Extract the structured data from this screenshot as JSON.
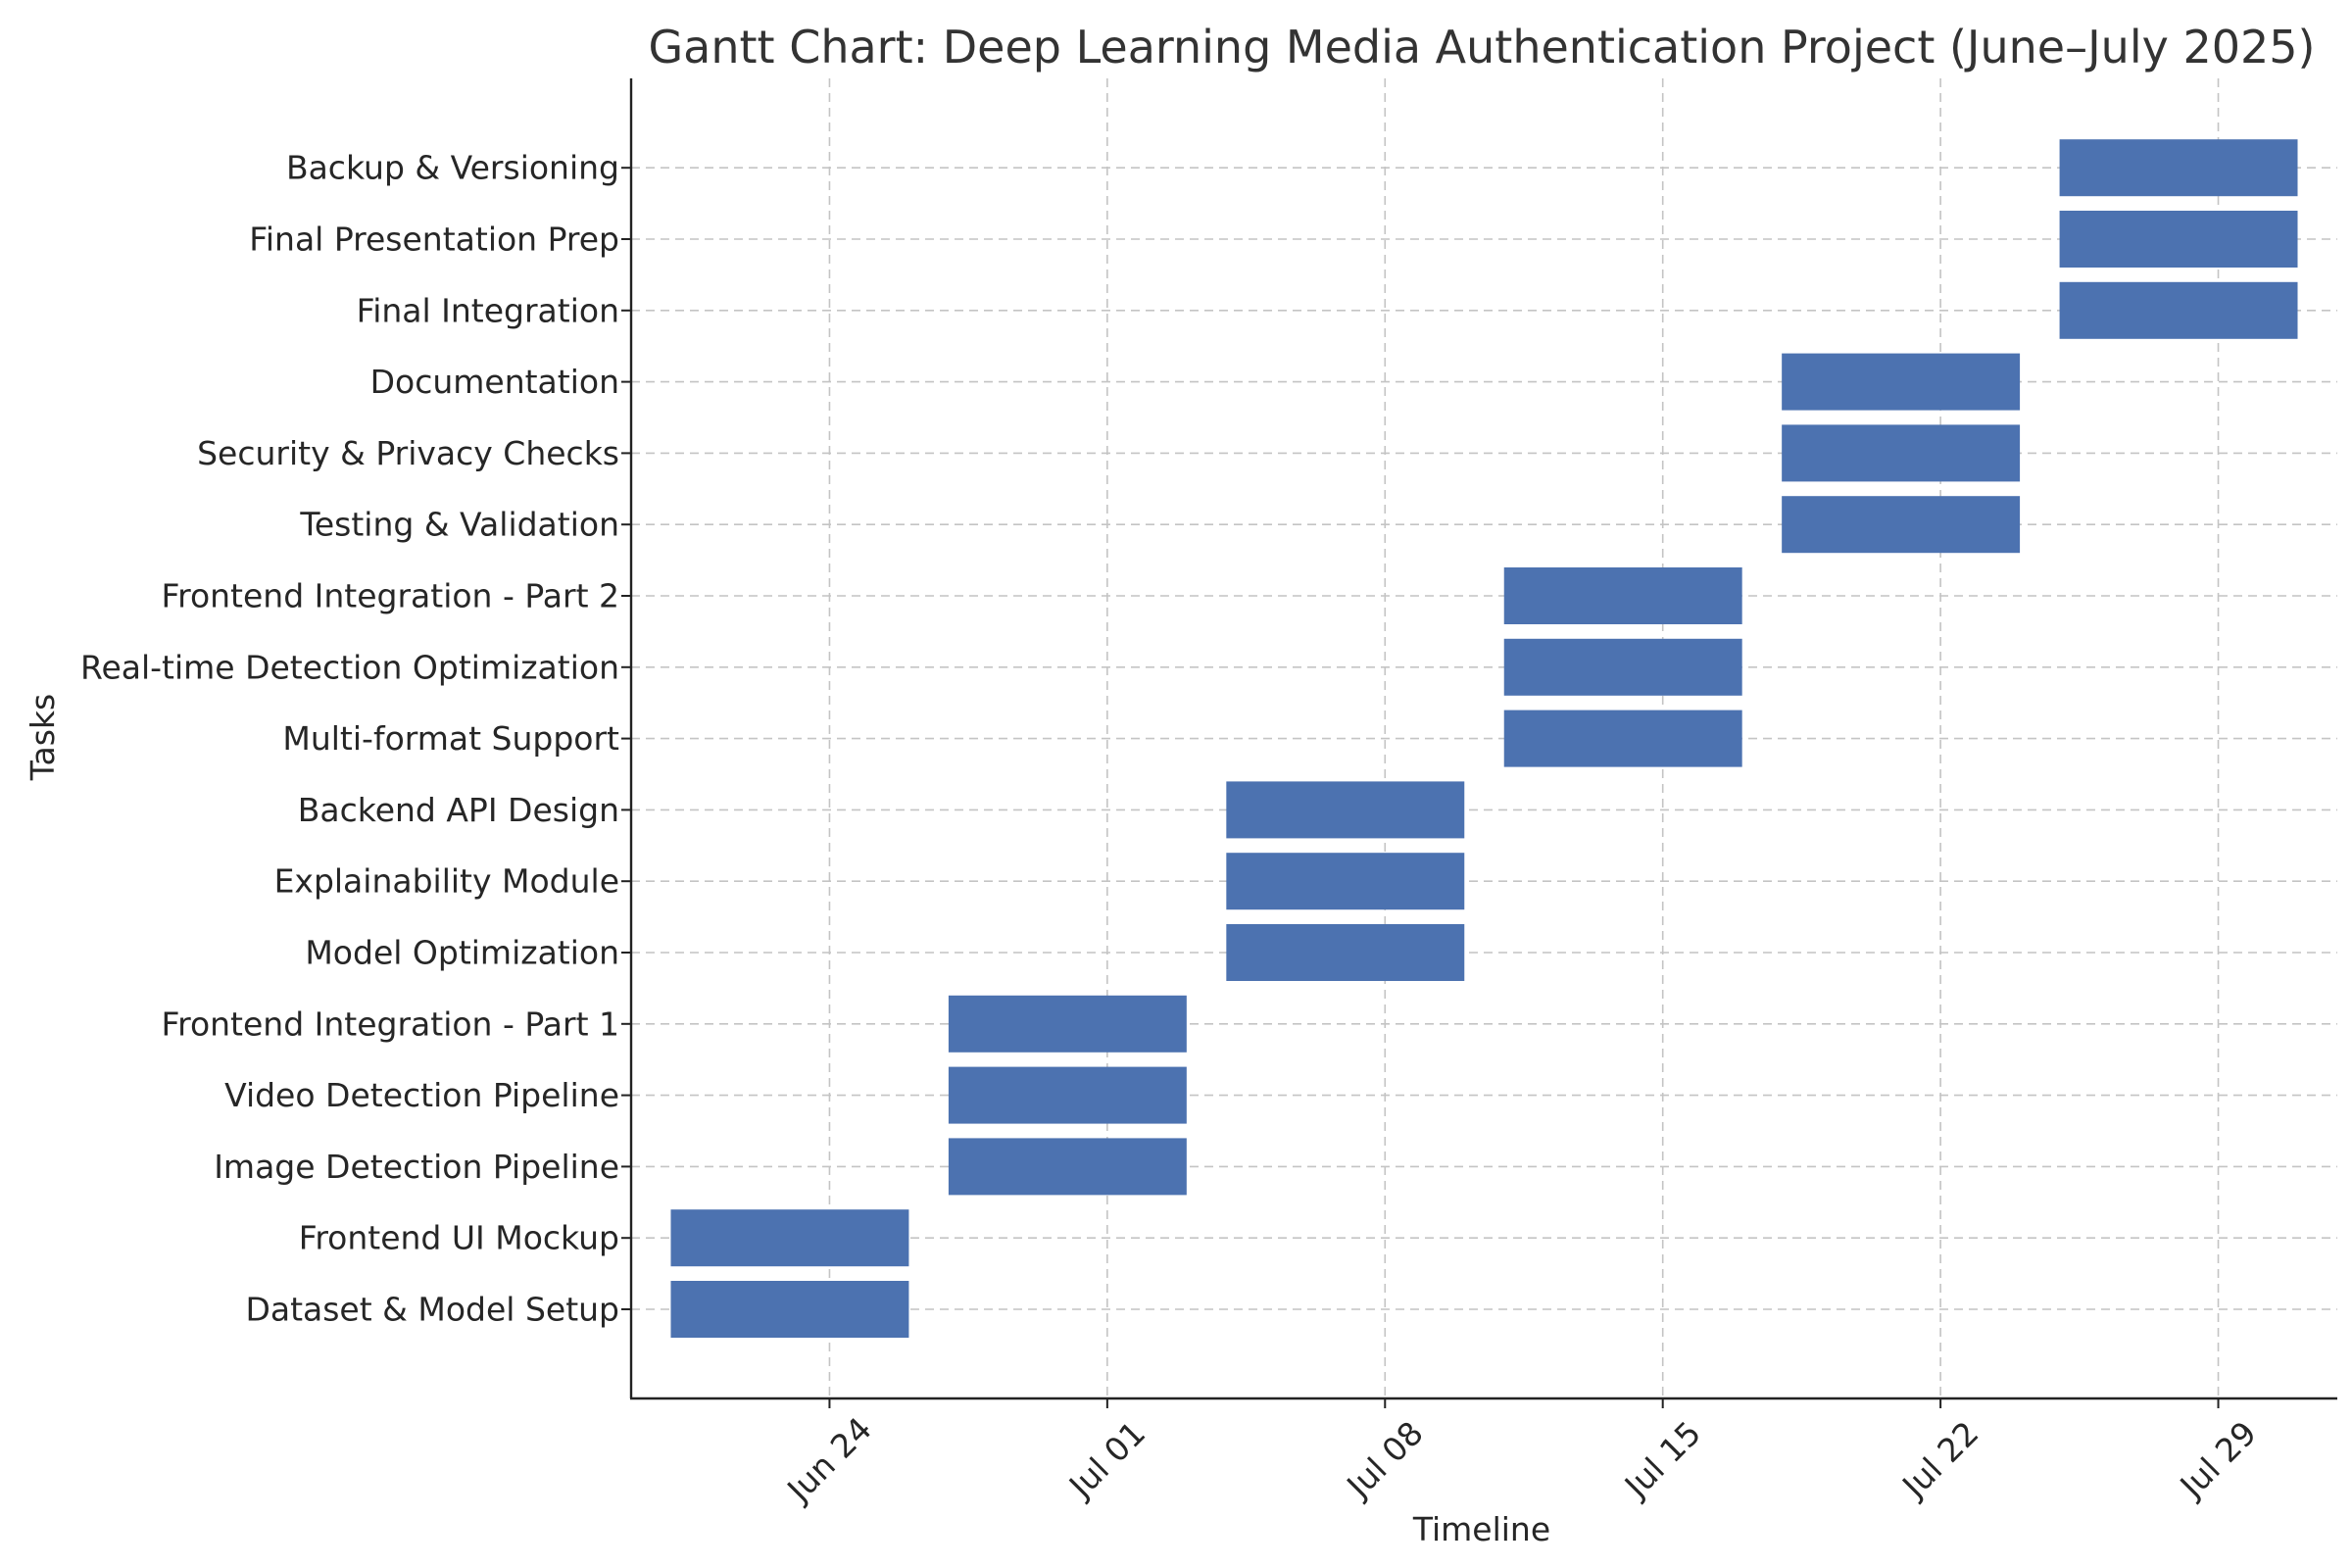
{
  "chart_data": {
    "type": "gantt",
    "title": "Gantt Chart: Deep Learning Media Authentication Project (June–July 2025)",
    "xlabel": "Timeline",
    "ylabel": "Tasks",
    "xlim": [
      "2025-06-19",
      "2025-08-01"
    ],
    "grid": true,
    "bar_color": "#4c72b0",
    "x_ticks": [
      {
        "date": "2025-06-24",
        "label": "Jun 24"
      },
      {
        "date": "2025-07-01",
        "label": "Jul 01"
      },
      {
        "date": "2025-07-08",
        "label": "Jul 08"
      },
      {
        "date": "2025-07-15",
        "label": "Jul 15"
      },
      {
        "date": "2025-07-22",
        "label": "Jul 22"
      },
      {
        "date": "2025-07-29",
        "label": "Jul 29"
      }
    ],
    "tasks": [
      {
        "name": "Dataset & Model Setup",
        "start": "2025-06-20",
        "end": "2025-06-26"
      },
      {
        "name": "Frontend UI Mockup",
        "start": "2025-06-20",
        "end": "2025-06-26"
      },
      {
        "name": "Image Detection Pipeline",
        "start": "2025-06-27",
        "end": "2025-07-03"
      },
      {
        "name": "Video Detection Pipeline",
        "start": "2025-06-27",
        "end": "2025-07-03"
      },
      {
        "name": "Frontend Integration - Part 1",
        "start": "2025-06-27",
        "end": "2025-07-03"
      },
      {
        "name": "Model Optimization",
        "start": "2025-07-04",
        "end": "2025-07-10"
      },
      {
        "name": "Explainability Module",
        "start": "2025-07-04",
        "end": "2025-07-10"
      },
      {
        "name": "Backend API Design",
        "start": "2025-07-04",
        "end": "2025-07-10"
      },
      {
        "name": "Multi-format Support",
        "start": "2025-07-11",
        "end": "2025-07-17"
      },
      {
        "name": "Real-time Detection Optimization",
        "start": "2025-07-11",
        "end": "2025-07-17"
      },
      {
        "name": "Frontend Integration - Part 2",
        "start": "2025-07-11",
        "end": "2025-07-17"
      },
      {
        "name": "Testing & Validation",
        "start": "2025-07-18",
        "end": "2025-07-24"
      },
      {
        "name": "Security & Privacy Checks",
        "start": "2025-07-18",
        "end": "2025-07-24"
      },
      {
        "name": "Documentation",
        "start": "2025-07-18",
        "end": "2025-07-24"
      },
      {
        "name": "Final Integration",
        "start": "2025-07-25",
        "end": "2025-07-31"
      },
      {
        "name": "Final Presentation Prep",
        "start": "2025-07-25",
        "end": "2025-07-31"
      },
      {
        "name": "Backup & Versioning",
        "start": "2025-07-25",
        "end": "2025-07-31"
      }
    ]
  }
}
